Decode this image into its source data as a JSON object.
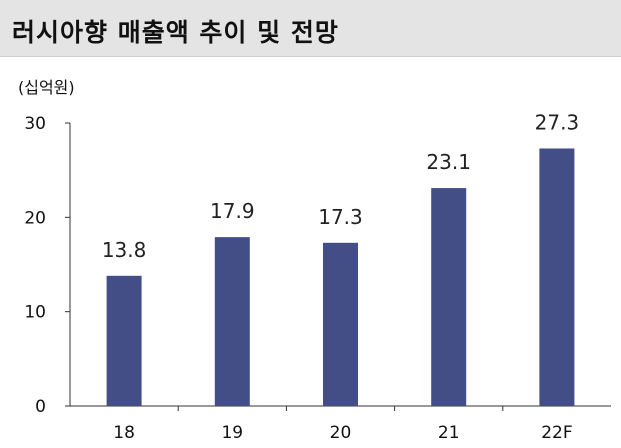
{
  "chart_data": {
    "type": "bar",
    "title": "러시아향 매출액 추이 및 전망",
    "unit": "(십억원)",
    "categories": [
      "18",
      "19",
      "20",
      "21",
      "22F"
    ],
    "values": [
      13.8,
      17.9,
      17.3,
      23.1,
      27.3
    ],
    "value_labels": [
      "13.8",
      "17.9",
      "17.3",
      "23.1",
      "27.3"
    ],
    "yticks": [
      "0",
      "10",
      "20",
      "30"
    ],
    "ylim": [
      0,
      30
    ],
    "grid": false,
    "bar_color": "#434d86",
    "axis_color": "#333333"
  }
}
